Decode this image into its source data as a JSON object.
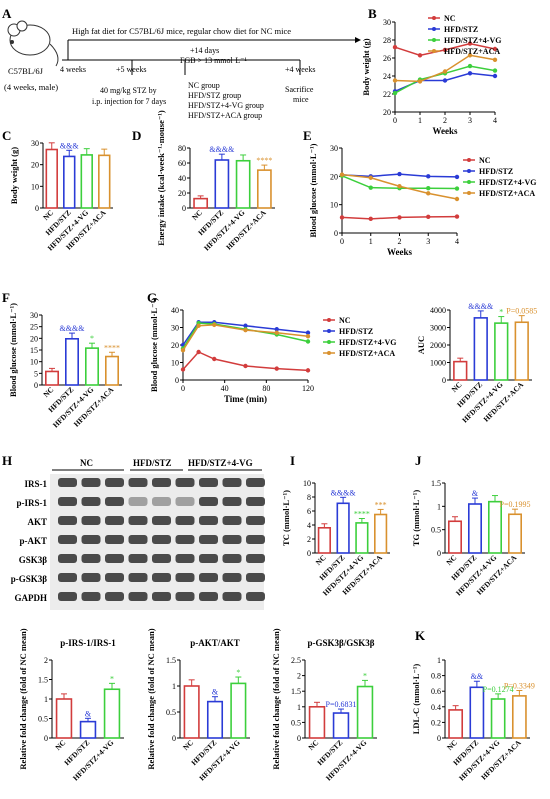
{
  "panel_letters": [
    "A",
    "B",
    "C",
    "D",
    "E",
    "F",
    "G",
    "H",
    "I",
    "J",
    "K"
  ],
  "colors": {
    "NC": "#d23c3c",
    "HFD/STZ": "#2a3bd6",
    "HFD/STZ+4-VG": "#3ccf3c",
    "HFD/STZ+ACA": "#d9912e",
    "text": "#000000"
  },
  "groups": [
    "NC",
    "HFD/STZ",
    "HFD/STZ+4-VG",
    "HFD/STZ+ACA"
  ],
  "groups3": [
    "NC",
    "HFD/STZ",
    "HFD/STZ+4-VG"
  ],
  "schematic": {
    "mouse_label": "C57BL/6J",
    "mouse_sub": "(4 weeks, male)",
    "top_text": "High fat diet for C57BL/6J mice, regular chow diet for NC mice",
    "t1": "4 weeks",
    "t2": "+5 weeks",
    "t3": "+14 days",
    "t3b": "FGB > 13 mmol·L⁻¹",
    "t4": "+4 weeks",
    "stz1": "40 mg/kg STZ by",
    "stz2": "i.p. injection for 7 days",
    "groups_text": [
      "NC group",
      "HFD/STZ group",
      "HFD/STZ+4-VG group",
      "HFD/STZ+ACA group"
    ],
    "sacrifice1": "Sacrifice",
    "sacrifice2": "mice"
  },
  "western": {
    "header_groups": [
      "NC",
      "HFD/STZ",
      "HFD/STZ+4-VG"
    ],
    "rows": [
      "IRS-1",
      "p-IRS-1",
      "AKT",
      "p-AKT",
      "GSK3β",
      "p-GSK3β",
      "GAPDH"
    ]
  },
  "chart_data": [
    {
      "panel": "B",
      "type": "line",
      "xlabel": "Weeks",
      "ylabel": "Body weight (g)",
      "x": [
        0,
        1,
        2,
        3,
        4
      ],
      "xlim": [
        0,
        4
      ],
      "ylim": [
        20,
        30
      ],
      "yticks": [
        20,
        22,
        24,
        26,
        28,
        30
      ],
      "series": [
        {
          "name": "NC",
          "values": [
            27.2,
            26.3,
            26.9,
            27.6,
            27.0
          ]
        },
        {
          "name": "HFD/STZ",
          "values": [
            22.3,
            23.5,
            23.5,
            24.3,
            24.0
          ]
        },
        {
          "name": "HFD/STZ+4-VG",
          "values": [
            22.1,
            23.6,
            24.3,
            25.1,
            24.6
          ]
        },
        {
          "name": "HFD/STZ+ACA",
          "values": [
            23.5,
            23.4,
            24.5,
            26.3,
            25.8
          ]
        }
      ]
    },
    {
      "panel": "C",
      "type": "bar",
      "ylabel": "Body weight (g)",
      "categories": [
        "NC",
        "HFD/STZ",
        "HFD/STZ+4-VG",
        "HFD/STZ+ACA"
      ],
      "values": [
        27.0,
        23.8,
        24.5,
        24.3
      ],
      "ylim": [
        0,
        30
      ],
      "yticks": [
        0,
        10,
        20,
        30
      ],
      "annotations": [
        "",
        "&&&",
        "",
        ""
      ]
    },
    {
      "panel": "D",
      "type": "bar",
      "ylabel": "Energy intake (kcal·week⁻¹·mouse⁻¹)",
      "categories": [
        "NC",
        "HFD/STZ",
        "HFD/STZ+4-VG",
        "HFD/STZ+ACA"
      ],
      "values": [
        12.5,
        64.0,
        63.0,
        50.5
      ],
      "ylim": [
        0,
        80
      ],
      "yticks": [
        0,
        20,
        40,
        60,
        80
      ],
      "annotations": [
        "",
        "&&&&",
        "",
        "****"
      ]
    },
    {
      "panel": "E",
      "type": "line",
      "xlabel": "Weeks",
      "ylabel": "Blood glucose (mmol·L⁻¹)",
      "x": [
        0,
        1,
        2,
        3,
        4
      ],
      "xlim": [
        0,
        4
      ],
      "ylim": [
        0,
        30
      ],
      "yticks": [
        0,
        10,
        20,
        30
      ],
      "series": [
        {
          "name": "NC",
          "values": [
            5.5,
            5.0,
            5.5,
            5.7,
            5.8
          ]
        },
        {
          "name": "HFD/STZ",
          "values": [
            20.5,
            20.0,
            20.8,
            20.0,
            19.8
          ]
        },
        {
          "name": "HFD/STZ+4-VG",
          "values": [
            20.2,
            16.0,
            15.8,
            15.8,
            15.7
          ]
        },
        {
          "name": "HFD/STZ+ACA",
          "values": [
            20.6,
            19.5,
            16.5,
            14.0,
            12.0
          ]
        }
      ]
    },
    {
      "panel": "F",
      "type": "bar",
      "ylabel": "Blood glucose (mmol·L⁻¹)",
      "categories": [
        "NC",
        "HFD/STZ",
        "HFD/STZ+4-VG",
        "HFD/STZ+ACA"
      ],
      "values": [
        5.8,
        19.8,
        15.8,
        12.2
      ],
      "ylim": [
        0,
        30
      ],
      "yticks": [
        0,
        5,
        10,
        15,
        20,
        25,
        30
      ],
      "annotations": [
        "",
        "&&&&",
        "*",
        "****"
      ]
    },
    {
      "panel": "G",
      "type": "line",
      "xlabel": "Time (min)",
      "ylabel": "Blood glucose (mmol·L⁻¹)",
      "x": [
        0,
        15,
        30,
        60,
        90,
        120
      ],
      "xlim": [
        0,
        120
      ],
      "ylim": [
        0,
        40
      ],
      "yticks": [
        0,
        10,
        20,
        30,
        40
      ],
      "xticks": [
        0,
        40,
        80,
        120
      ],
      "series": [
        {
          "name": "NC",
          "values": [
            6.0,
            16.0,
            12.0,
            8.0,
            6.5,
            5.5
          ]
        },
        {
          "name": "HFD/STZ",
          "values": [
            20.0,
            33.0,
            33.0,
            31.0,
            29.0,
            27.0
          ]
        },
        {
          "name": "HFD/STZ+4-VG",
          "values": [
            18.0,
            32.5,
            32.0,
            29.0,
            26.0,
            22.0
          ]
        },
        {
          "name": "HFD/STZ+ACA",
          "values": [
            17.0,
            31.0,
            31.5,
            28.5,
            27.0,
            25.0
          ]
        }
      ]
    },
    {
      "panel": "G-AUC",
      "type": "bar",
      "ylabel": "AUC",
      "categories": [
        "NC",
        "HFD/STZ",
        "HFD/STZ+4-VG",
        "HFD/STZ+ACA"
      ],
      "values": [
        1050,
        3550,
        3250,
        3300
      ],
      "ylim": [
        0,
        4000
      ],
      "yticks": [
        0,
        1000,
        2000,
        3000,
        4000
      ],
      "annotations": [
        "",
        "&&&&",
        "*",
        "P=0.0585"
      ]
    },
    {
      "panel": "I",
      "type": "bar",
      "ylabel": "TC (mmol·L⁻¹)",
      "categories": [
        "NC",
        "HFD/STZ",
        "HFD/STZ+4-VG",
        "HFD/STZ+ACA"
      ],
      "values": [
        3.6,
        7.1,
        4.3,
        5.5
      ],
      "ylim": [
        0,
        10
      ],
      "yticks": [
        0,
        2,
        4,
        6,
        8,
        10
      ],
      "annotations": [
        "",
        "&&&&",
        "****",
        "***"
      ]
    },
    {
      "panel": "J",
      "type": "bar",
      "ylabel": "TG (mmol·L⁻¹)",
      "categories": [
        "NC",
        "HFD/STZ",
        "HFD/STZ+4-VG",
        "HFD/STZ+ACA"
      ],
      "values": [
        0.68,
        1.05,
        1.1,
        0.83
      ],
      "ylim": [
        0,
        1.5
      ],
      "yticks": [
        0,
        0.5,
        1.0,
        1.5
      ],
      "annotations": [
        "",
        "&",
        "",
        "P=0.1995"
      ]
    },
    {
      "panel": "H1",
      "type": "bar",
      "title": "p-IRS-1/IRS-1",
      "ylabel": "Relative fold change (fold of NC mean)",
      "categories": [
        "NC",
        "HFD/STZ",
        "HFD/STZ+4-VG"
      ],
      "values": [
        1.0,
        0.42,
        1.25
      ],
      "ylim": [
        0,
        2
      ],
      "yticks": [
        0,
        0.5,
        1.0,
        1.5,
        2.0
      ],
      "annotations": [
        "",
        "&",
        "*"
      ]
    },
    {
      "panel": "H2",
      "type": "bar",
      "title": "p-AKT/AKT",
      "ylabel": "Relative fold change (fold of NC mean)",
      "categories": [
        "NC",
        "HFD/STZ",
        "HFD/STZ+4-VG"
      ],
      "values": [
        1.0,
        0.7,
        1.05
      ],
      "ylim": [
        0,
        1.5
      ],
      "yticks": [
        0,
        0.5,
        1.0,
        1.5
      ],
      "annotations": [
        "",
        "&",
        "*"
      ]
    },
    {
      "panel": "H3",
      "type": "bar",
      "title": "p-GSK3β/GSK3β",
      "ylabel": "Relative fold change (fold of NC mean)",
      "categories": [
        "NC",
        "HFD/STZ",
        "HFD/STZ+4-VG"
      ],
      "values": [
        1.0,
        0.8,
        1.65
      ],
      "ylim": [
        0,
        2.5
      ],
      "yticks": [
        0,
        0.5,
        1.0,
        1.5,
        2.0,
        2.5
      ],
      "annotations": [
        "",
        "P=0.6831",
        "*"
      ]
    },
    {
      "panel": "K",
      "type": "bar",
      "ylabel": "LDL-C (mmol·L⁻¹)",
      "categories": [
        "NC",
        "HFD/STZ",
        "HFD/STZ+4-VG",
        "HFD/STZ+ACA"
      ],
      "values": [
        0.36,
        0.65,
        0.5,
        0.54
      ],
      "ylim": [
        0,
        1.0
      ],
      "yticks": [
        0,
        0.2,
        0.4,
        0.6,
        0.8,
        1.0
      ],
      "annotations": [
        "",
        "&&",
        "P=0.1274",
        "P=0.3349"
      ]
    }
  ]
}
